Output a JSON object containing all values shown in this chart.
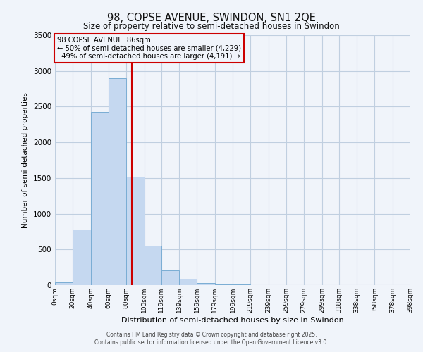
{
  "title": "98, COPSE AVENUE, SWINDON, SN1 2QE",
  "subtitle": "Size of property relative to semi-detached houses in Swindon",
  "xlabel": "Distribution of semi-detached houses by size in Swindon",
  "ylabel": "Number of semi-detached properties",
  "property_label": "98 COPSE AVENUE: 86sqm",
  "pct_smaller": 50,
  "count_smaller": 4229,
  "pct_larger": 49,
  "count_larger": 4191,
  "bin_edges": [
    0,
    20,
    40,
    60,
    80,
    100,
    119,
    139,
    159,
    179,
    199,
    219,
    239,
    259,
    279,
    299,
    318,
    338,
    358,
    378,
    398
  ],
  "bin_counts": [
    40,
    780,
    2430,
    2900,
    1520,
    550,
    210,
    90,
    30,
    5,
    5,
    0,
    0,
    0,
    0,
    0,
    0,
    0,
    0,
    0
  ],
  "bar_color": "#c5d8f0",
  "bar_edge_color": "#7aadd4",
  "vline_color": "#cc0000",
  "vline_x": 86,
  "box_edge_color": "#cc0000",
  "ylim": [
    0,
    3500
  ],
  "yticks": [
    0,
    500,
    1000,
    1500,
    2000,
    2500,
    3000,
    3500
  ],
  "tick_labels": [
    "0sqm",
    "20sqm",
    "40sqm",
    "60sqm",
    "80sqm",
    "100sqm",
    "119sqm",
    "139sqm",
    "159sqm",
    "179sqm",
    "199sqm",
    "219sqm",
    "239sqm",
    "259sqm",
    "279sqm",
    "299sqm",
    "318sqm",
    "338sqm",
    "358sqm",
    "378sqm",
    "398sqm"
  ],
  "footer1": "Contains HM Land Registry data © Crown copyright and database right 2025.",
  "footer2": "Contains public sector information licensed under the Open Government Licence v3.0.",
  "bg_color": "#f0f4fa",
  "grid_color": "#c0cfe0"
}
